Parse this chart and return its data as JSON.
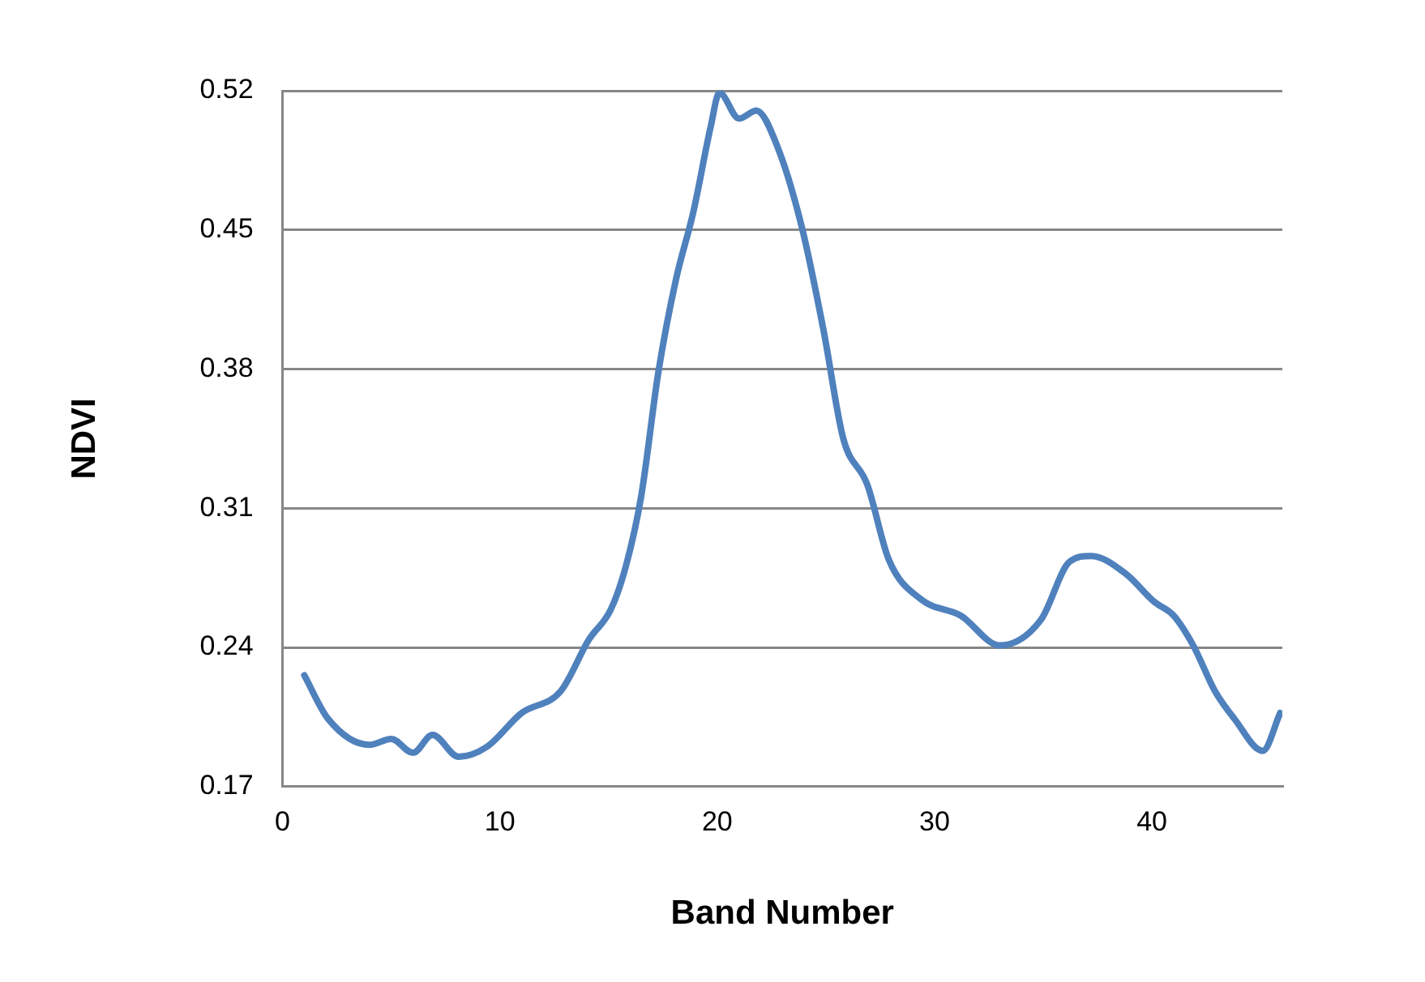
{
  "chart_data": {
    "type": "line",
    "xlabel": "Band Number",
    "ylabel": "NDVI",
    "x": [
      1,
      2.1,
      4,
      5,
      6,
      6.9,
      8.1,
      9.4,
      11,
      12.8,
      14.1,
      15.1,
      15.8,
      16.5,
      17.3,
      18.1,
      18.9,
      19.7,
      20.1,
      21,
      21.8,
      22.8,
      23.9,
      24.9,
      25.8,
      26.9,
      27.9,
      29.4,
      31.2,
      33,
      34.9,
      36.2,
      37.2,
      38.8,
      40.1,
      41,
      41.9,
      42.9,
      43.8,
      45.1,
      45.9
    ],
    "series": [
      {
        "color": "#4f81bd",
        "values": [
          0.226,
          0.204,
          0.191,
          0.194,
          0.187,
          0.196,
          0.185,
          0.19,
          0.207,
          0.218,
          0.244,
          0.259,
          0.281,
          0.316,
          0.379,
          0.425,
          0.459,
          0.502,
          0.519,
          0.506,
          0.51,
          0.491,
          0.451,
          0.399,
          0.345,
          0.322,
          0.284,
          0.264,
          0.256,
          0.241,
          0.254,
          0.283,
          0.286,
          0.277,
          0.263,
          0.256,
          0.241,
          0.218,
          0.204,
          0.188,
          0.207
        ]
      }
    ],
    "xlim": [
      0,
      46
    ],
    "xticks": [
      0,
      10,
      20,
      30,
      40
    ],
    "ylim": [
      0.17,
      0.52
    ],
    "yticks": [
      0.17,
      0.24,
      0.31,
      0.38,
      0.45,
      0.52
    ],
    "grid": "y",
    "legend": false,
    "marker": "none",
    "line_style": "solid"
  }
}
